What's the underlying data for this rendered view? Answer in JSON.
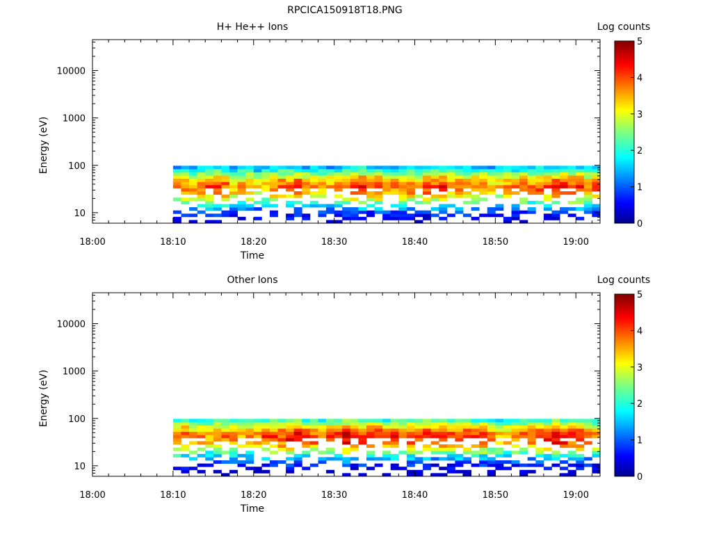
{
  "figure_title": "RPCICA150918T18.PNG",
  "colorbar_label": "Log counts",
  "chart_data": [
    {
      "type": "heatmap",
      "title": "H+ He++ Ions",
      "xlabel": "Time",
      "ylabel": "Energy (eV)",
      "x_tick_labels": [
        "18:00",
        "18:10",
        "18:20",
        "18:30",
        "18:40",
        "18:50",
        "19:00"
      ],
      "x_range": [
        "18:00",
        "19:03"
      ],
      "y_scale": "log",
      "y_tick_labels": [
        "10",
        "100",
        "1000",
        "10000"
      ],
      "y_range": [
        6,
        45000
      ],
      "data_start": "18:10",
      "data_end": "19:03",
      "colorbar_range": [
        0,
        5
      ],
      "colorbar_ticks": [
        "0",
        "1",
        "2",
        "3",
        "4",
        "5"
      ],
      "peak_energy_eV": 35,
      "peak_log_counts_by_time": [
        {
          "time": "18:10",
          "value": 3.4
        },
        {
          "time": "18:13",
          "value": 3.9
        },
        {
          "time": "18:20",
          "value": 3.5
        },
        {
          "time": "18:25",
          "value": 4.0
        },
        {
          "time": "18:28",
          "value": 3.6
        },
        {
          "time": "18:32",
          "value": 4.2
        },
        {
          "time": "18:38",
          "value": 3.7
        },
        {
          "time": "18:41",
          "value": 4.0
        },
        {
          "time": "18:46",
          "value": 4.0
        },
        {
          "time": "18:50",
          "value": 3.4
        },
        {
          "time": "18:55",
          "value": 4.1
        },
        {
          "time": "18:58",
          "value": 4.2
        },
        {
          "time": "19:02",
          "value": 3.8
        }
      ]
    },
    {
      "type": "heatmap",
      "title": "Other Ions",
      "xlabel": "Time",
      "ylabel": "Energy (eV)",
      "x_tick_labels": [
        "18:00",
        "18:10",
        "18:20",
        "18:30",
        "18:40",
        "18:50",
        "19:00"
      ],
      "x_range": [
        "18:00",
        "19:03"
      ],
      "y_scale": "log",
      "y_tick_labels": [
        "10",
        "100",
        "1000",
        "10000"
      ],
      "y_range": [
        6,
        45000
      ],
      "data_start": "18:10",
      "data_end": "19:03",
      "colorbar_range": [
        0,
        5
      ],
      "colorbar_ticks": [
        "0",
        "1",
        "2",
        "3",
        "4",
        "5"
      ],
      "peak_energy_eV": 40,
      "peak_log_counts_by_time": [
        {
          "time": "18:10",
          "value": 4.2
        },
        {
          "time": "18:13",
          "value": 3.6
        },
        {
          "time": "18:20",
          "value": 3.8
        },
        {
          "time": "18:25",
          "value": 4.3
        },
        {
          "time": "18:28",
          "value": 3.9
        },
        {
          "time": "18:32",
          "value": 4.6
        },
        {
          "time": "18:38",
          "value": 3.9
        },
        {
          "time": "18:41",
          "value": 4.2
        },
        {
          "time": "18:46",
          "value": 4.3
        },
        {
          "time": "18:50",
          "value": 3.6
        },
        {
          "time": "18:55",
          "value": 4.4
        },
        {
          "time": "18:58",
          "value": 4.5
        },
        {
          "time": "19:02",
          "value": 4.0
        }
      ]
    }
  ]
}
